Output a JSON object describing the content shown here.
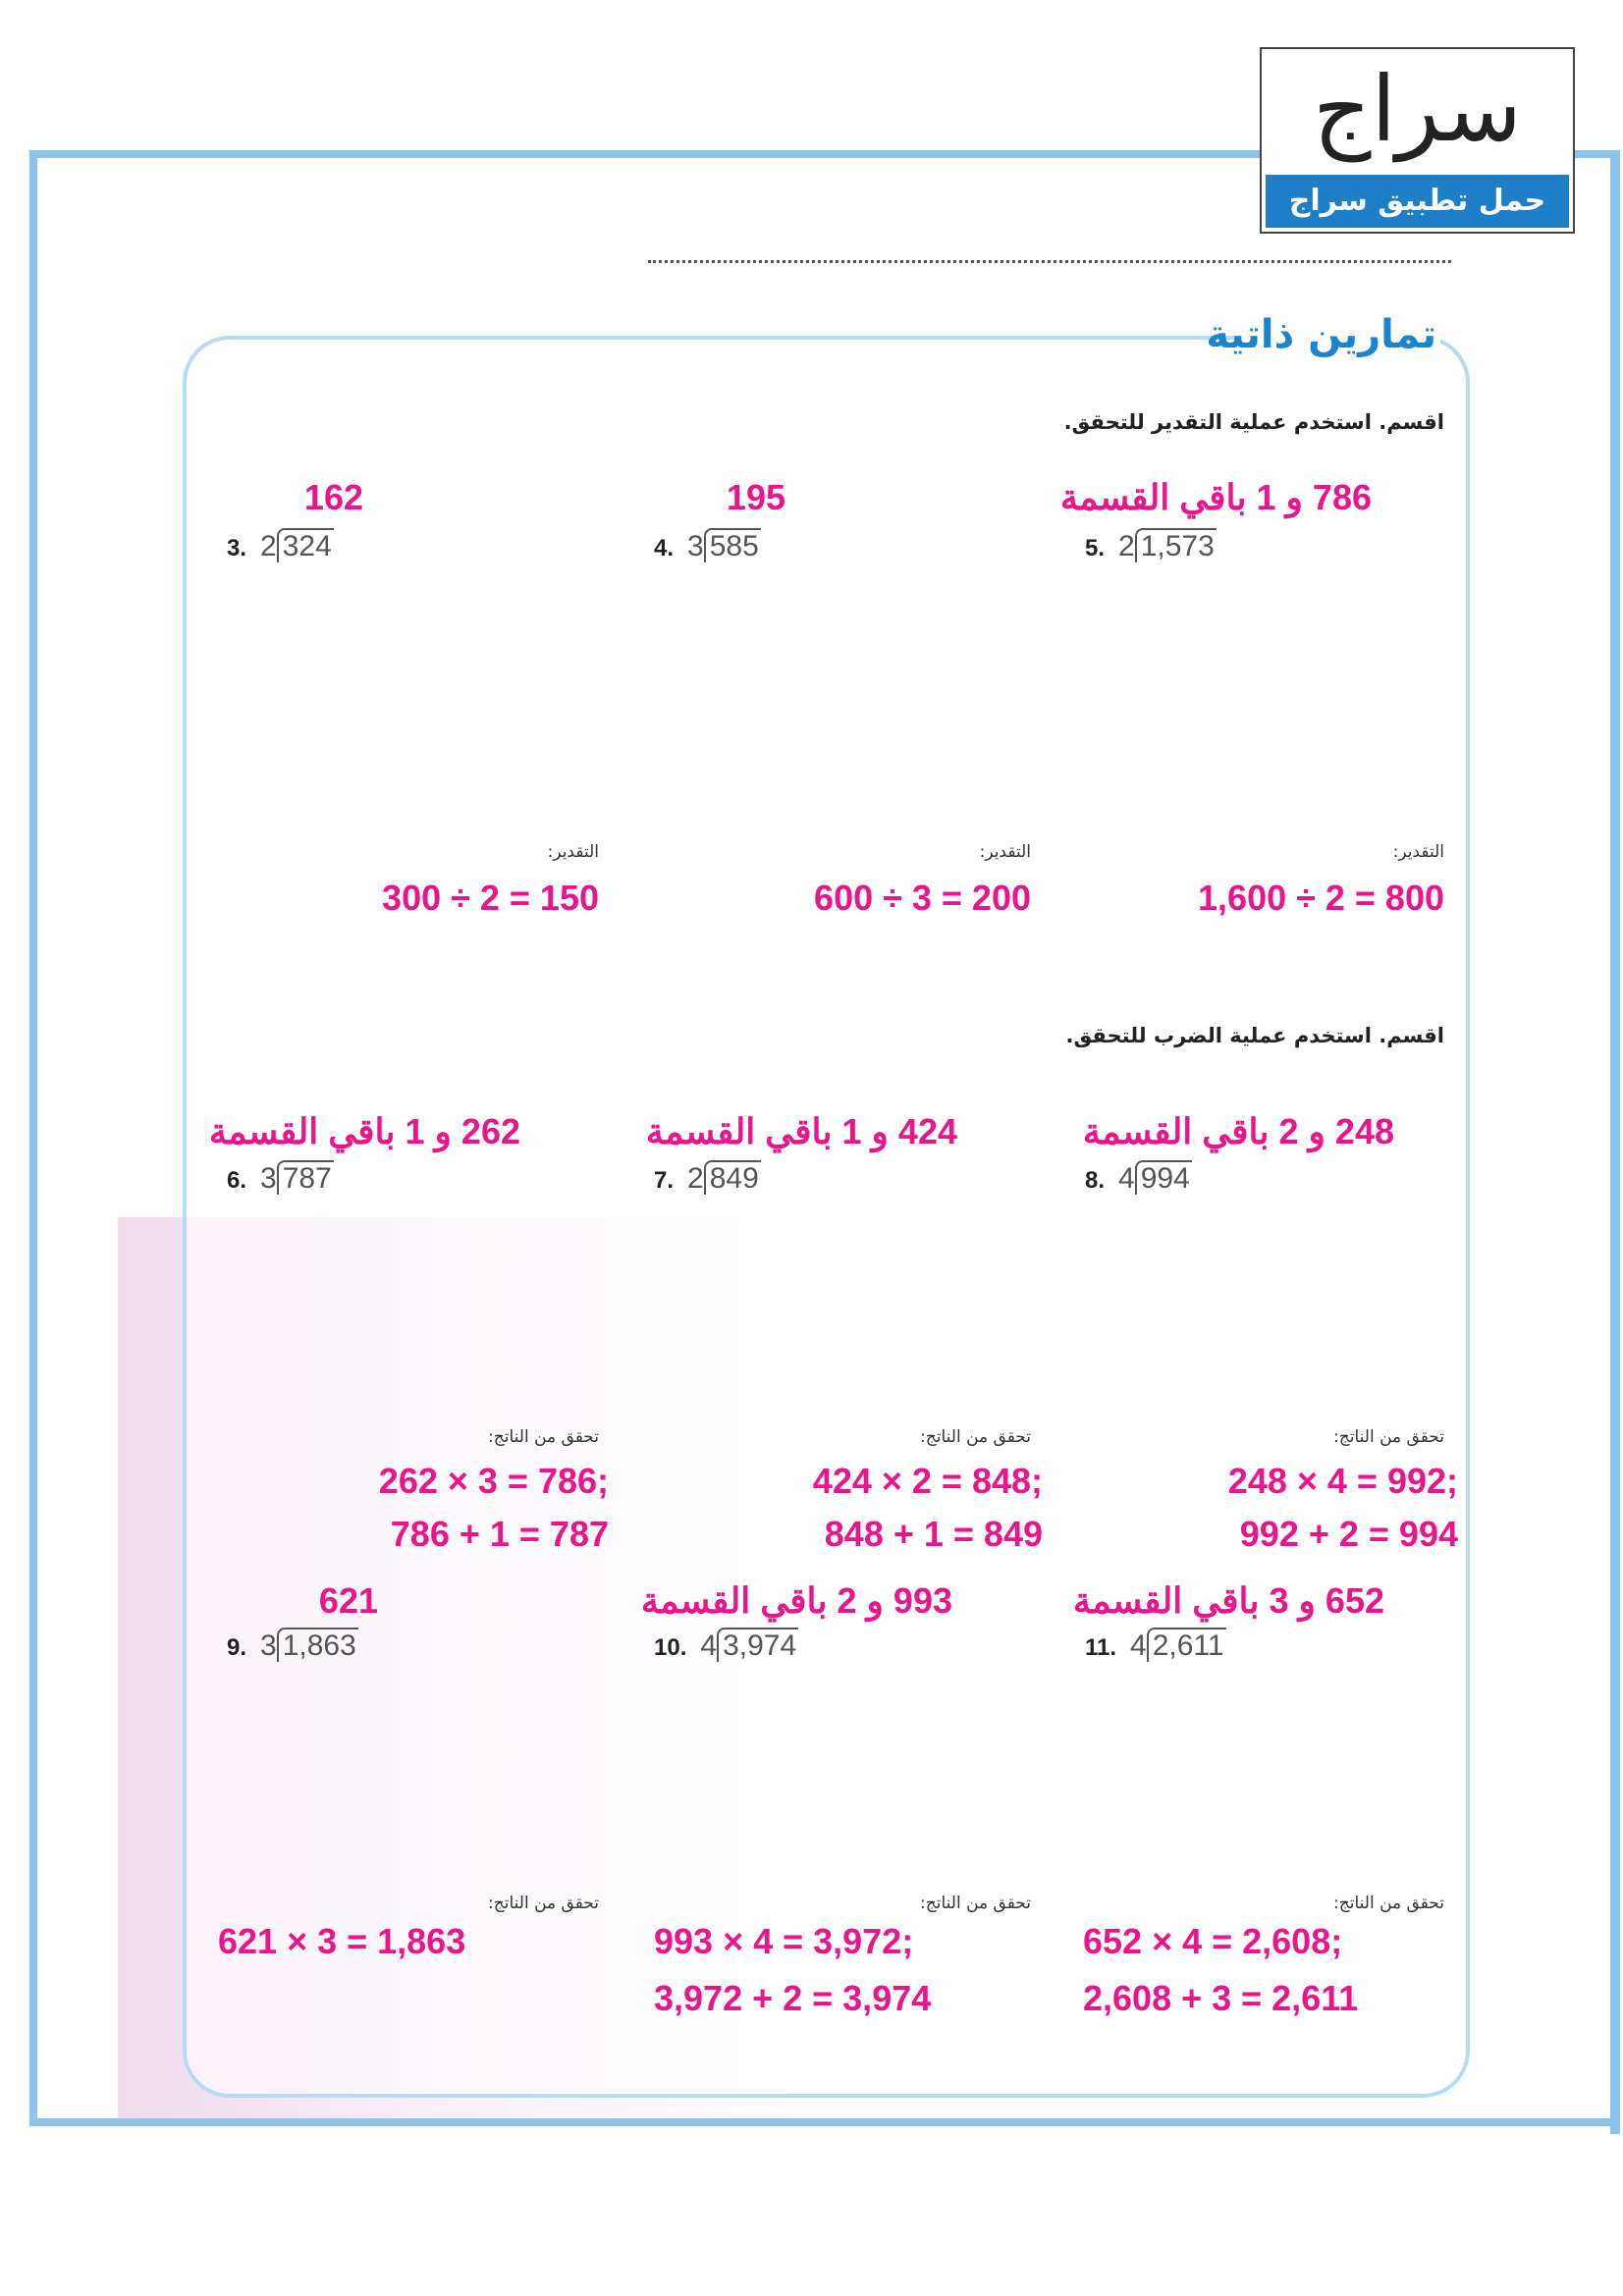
{
  "logo": {
    "name": "سراج",
    "tagline": "حمل تطبيق سراج"
  },
  "section_title": "تمارين ذاتية",
  "colors": {
    "accent_blue": "#1b84cf",
    "answer_pink": "#e8168a",
    "frame_blue": "#8cc4ee"
  },
  "instructions": {
    "estimate": "اقسم. استخدم عملية التقدير للتحقق.",
    "multiply": "اقسم. استخدم عملية الضرب للتحقق."
  },
  "estimate_label": "التقدير:",
  "check_label": "تحقق من الناتج:",
  "problems": [
    {
      "number": "3.",
      "divisor": "2",
      "dividend": "324",
      "answer": "162",
      "check": [
        "300 ÷ 2 = 150"
      ]
    },
    {
      "number": "4.",
      "divisor": "3",
      "dividend": "585",
      "answer": "195",
      "check": [
        "600 ÷ 3 = 200"
      ]
    },
    {
      "number": "5.",
      "divisor": "2",
      "dividend": "1,573",
      "answer": "786 و 1 باقي القسمة",
      "check": [
        "1,600 ÷ 2 = 800"
      ]
    },
    {
      "number": "6.",
      "divisor": "3",
      "dividend": "787",
      "answer": "262 و 1 باقي القسمة",
      "check": [
        "262 × 3 = 786;",
        "786 + 1 = 787"
      ]
    },
    {
      "number": "7.",
      "divisor": "2",
      "dividend": "849",
      "answer": "424 و 1 باقي القسمة",
      "check": [
        "424 × 2 = 848;",
        "848 + 1 = 849"
      ]
    },
    {
      "number": "8.",
      "divisor": "4",
      "dividend": "994",
      "answer": "248 و 2 باقي القسمة",
      "check": [
        "248 × 4 = 992;",
        "992 + 2 = 994"
      ]
    },
    {
      "number": "9.",
      "divisor": "3",
      "dividend": "1,863",
      "answer": "621",
      "check": [
        "621 × 3 = 1,863"
      ]
    },
    {
      "number": "10.",
      "divisor": "4",
      "dividend": "3,974",
      "answer": "993 و 2 باقي القسمة",
      "check": [
        "993 × 4 = 3,972;",
        "3,972 + 2 = 3,974"
      ]
    },
    {
      "number": "11.",
      "divisor": "4",
      "dividend": "2,611",
      "answer": "652 و 3 باقي القسمة",
      "check": [
        "652 × 4 = 2,608;",
        "2,608 + 3 = 2,611"
      ]
    }
  ]
}
